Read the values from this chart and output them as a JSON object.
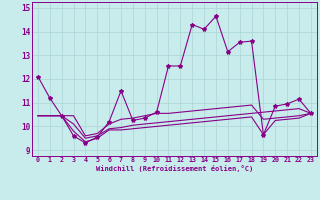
{
  "xlabel": "Windchill (Refroidissement éolien,°C)",
  "bg_color": "#c8ecec",
  "grid_color": "#b0d8d8",
  "line_color": "#880088",
  "x": [
    0,
    1,
    2,
    3,
    4,
    5,
    6,
    7,
    8,
    9,
    10,
    11,
    12,
    13,
    14,
    15,
    16,
    17,
    18,
    19,
    20,
    21,
    22,
    23
  ],
  "series": [
    [
      12.1,
      11.2,
      10.45,
      9.6,
      9.3,
      9.55,
      10.2,
      11.5,
      10.25,
      10.35,
      10.6,
      12.55,
      12.55,
      14.3,
      14.1,
      14.65,
      13.15,
      13.55,
      13.6,
      9.65,
      10.85,
      10.95,
      11.15,
      10.55
    ],
    [
      10.45,
      10.45,
      10.45,
      10.45,
      9.6,
      9.7,
      10.1,
      10.3,
      10.35,
      10.45,
      10.55,
      10.55,
      10.6,
      10.65,
      10.7,
      10.75,
      10.8,
      10.85,
      10.9,
      10.3,
      10.35,
      10.4,
      10.45,
      10.55
    ],
    [
      10.45,
      10.45,
      10.45,
      10.1,
      9.5,
      9.6,
      9.9,
      9.95,
      10.05,
      10.1,
      10.15,
      10.2,
      10.25,
      10.3,
      10.35,
      10.4,
      10.45,
      10.5,
      10.55,
      10.6,
      10.65,
      10.7,
      10.75,
      10.55
    ],
    [
      10.45,
      10.45,
      10.45,
      9.8,
      9.35,
      9.5,
      9.85,
      9.85,
      9.9,
      9.95,
      10.0,
      10.05,
      10.1,
      10.15,
      10.2,
      10.25,
      10.3,
      10.35,
      10.4,
      9.65,
      10.25,
      10.3,
      10.35,
      10.55
    ]
  ],
  "ylim": [
    8.75,
    15.25
  ],
  "xlim": [
    -0.5,
    23.5
  ],
  "yticks": [
    9,
    10,
    11,
    12,
    13,
    14,
    15
  ],
  "xticks": [
    0,
    1,
    2,
    3,
    4,
    5,
    6,
    7,
    8,
    9,
    10,
    11,
    12,
    13,
    14,
    15,
    16,
    17,
    18,
    19,
    20,
    21,
    22,
    23
  ]
}
